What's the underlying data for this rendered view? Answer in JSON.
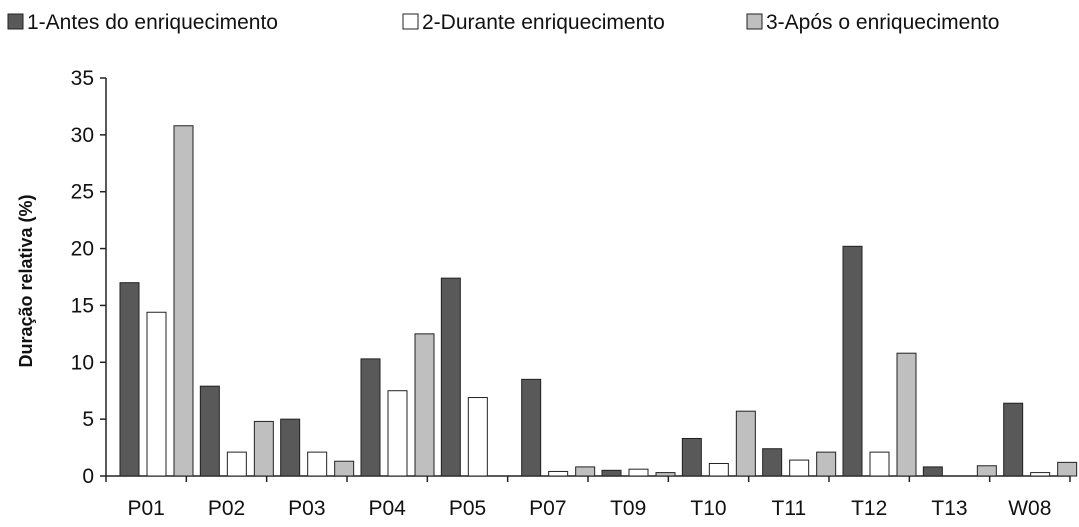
{
  "chart_data": {
    "type": "bar",
    "title": "",
    "xlabel": "",
    "ylabel": "Duração relativa (%)",
    "ylim": [
      0,
      35
    ],
    "yticks": [
      0,
      5,
      10,
      15,
      20,
      25,
      30,
      35
    ],
    "grid": false,
    "legend_position": "top",
    "categories": [
      "P01",
      "P02",
      "P03",
      "P04",
      "P05",
      "P07",
      "T09",
      "T10",
      "T11",
      "T12",
      "T13",
      "W08"
    ],
    "series": [
      {
        "name": "1-Antes do enriquecimento",
        "color": "#595959",
        "values": [
          17.0,
          7.9,
          5.0,
          10.3,
          17.4,
          8.5,
          0.5,
          3.3,
          2.4,
          20.2,
          0.8,
          6.4
        ]
      },
      {
        "name": "2-Durante enriquecimento",
        "color": "#ffffff",
        "values": [
          14.4,
          2.1,
          2.1,
          7.5,
          6.9,
          0.4,
          0.6,
          1.1,
          1.4,
          2.1,
          0.0,
          0.3
        ]
      },
      {
        "name": "3-Após o enriquecimento",
        "color": "#bfbfbf",
        "values": [
          30.8,
          4.8,
          1.3,
          12.5,
          0.0,
          0.8,
          0.3,
          5.7,
          2.1,
          10.8,
          0.9,
          1.2
        ]
      }
    ]
  }
}
